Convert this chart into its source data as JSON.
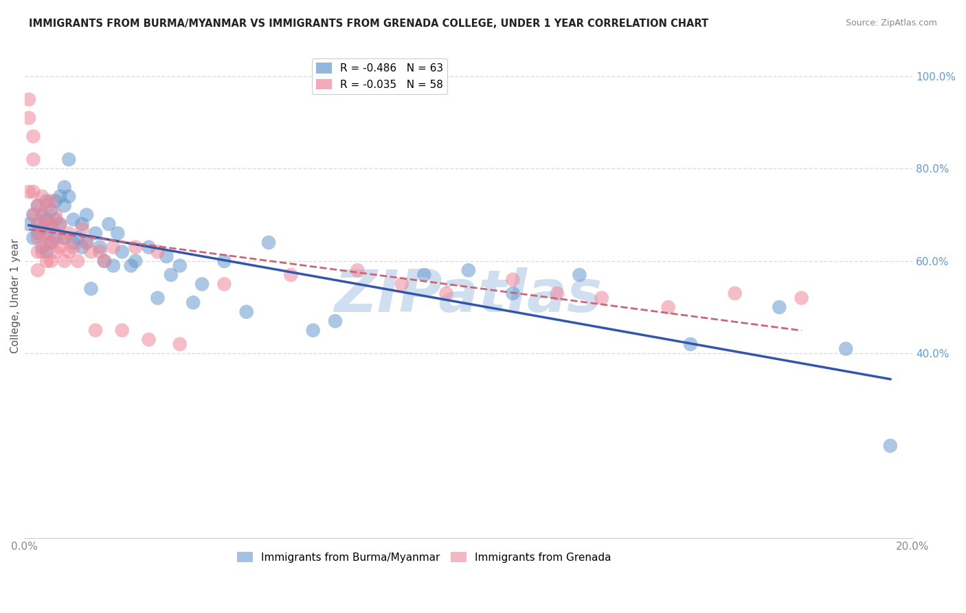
{
  "title": "IMMIGRANTS FROM BURMA/MYANMAR VS IMMIGRANTS FROM GRENADA COLLEGE, UNDER 1 YEAR CORRELATION CHART",
  "source": "Source: ZipAtlas.com",
  "xlabel": "",
  "ylabel": "College, Under 1 year",
  "xlim": [
    0.0,
    0.2
  ],
  "ylim": [
    0.0,
    1.05
  ],
  "xticks": [
    0.0,
    0.05,
    0.1,
    0.15,
    0.2
  ],
  "xticklabels": [
    "0.0%",
    "",
    "",
    "",
    "20.0%"
  ],
  "yticks_right": [
    0.4,
    0.6,
    0.8,
    1.0
  ],
  "ytickslabels_right": [
    "40.0%",
    "60.0%",
    "80.0%",
    "100.0%"
  ],
  "watermark": "ZIPatlas",
  "watermark_color": "#d0dff0",
  "blue_color": "#6699cc",
  "pink_color": "#ee8899",
  "blue_line_color": "#3355aa",
  "pink_line_color": "#cc6677",
  "background_color": "#ffffff",
  "grid_color": "#dddddd",
  "right_axis_color": "#6699cc",
  "R_blue": -0.486,
  "N_blue": 63,
  "R_pink": -0.035,
  "N_pink": 58,
  "blue_x": [
    0.001,
    0.002,
    0.002,
    0.003,
    0.003,
    0.003,
    0.004,
    0.004,
    0.004,
    0.005,
    0.005,
    0.005,
    0.005,
    0.006,
    0.006,
    0.006,
    0.007,
    0.007,
    0.007,
    0.008,
    0.008,
    0.009,
    0.009,
    0.009,
    0.01,
    0.01,
    0.011,
    0.011,
    0.012,
    0.013,
    0.013,
    0.014,
    0.014,
    0.015,
    0.016,
    0.017,
    0.018,
    0.019,
    0.02,
    0.021,
    0.022,
    0.024,
    0.025,
    0.028,
    0.03,
    0.032,
    0.033,
    0.035,
    0.038,
    0.04,
    0.045,
    0.05,
    0.055,
    0.065,
    0.07,
    0.09,
    0.1,
    0.11,
    0.125,
    0.15,
    0.17,
    0.185,
    0.195
  ],
  "blue_y": [
    0.68,
    0.7,
    0.65,
    0.72,
    0.68,
    0.66,
    0.7,
    0.67,
    0.63,
    0.73,
    0.69,
    0.66,
    0.62,
    0.71,
    0.68,
    0.64,
    0.73,
    0.69,
    0.65,
    0.74,
    0.68,
    0.76,
    0.72,
    0.65,
    0.82,
    0.74,
    0.69,
    0.64,
    0.65,
    0.68,
    0.63,
    0.7,
    0.64,
    0.54,
    0.66,
    0.63,
    0.6,
    0.68,
    0.59,
    0.66,
    0.62,
    0.59,
    0.6,
    0.63,
    0.52,
    0.61,
    0.57,
    0.59,
    0.51,
    0.55,
    0.6,
    0.49,
    0.64,
    0.45,
    0.47,
    0.57,
    0.58,
    0.53,
    0.57,
    0.42,
    0.5,
    0.41,
    0.2
  ],
  "pink_x": [
    0.001,
    0.001,
    0.001,
    0.002,
    0.002,
    0.002,
    0.002,
    0.003,
    0.003,
    0.003,
    0.003,
    0.003,
    0.004,
    0.004,
    0.004,
    0.004,
    0.005,
    0.005,
    0.005,
    0.005,
    0.006,
    0.006,
    0.006,
    0.006,
    0.007,
    0.007,
    0.007,
    0.008,
    0.008,
    0.009,
    0.009,
    0.01,
    0.01,
    0.011,
    0.012,
    0.013,
    0.014,
    0.015,
    0.016,
    0.017,
    0.018,
    0.02,
    0.022,
    0.025,
    0.028,
    0.03,
    0.035,
    0.045,
    0.06,
    0.075,
    0.085,
    0.095,
    0.11,
    0.12,
    0.13,
    0.145,
    0.16,
    0.175
  ],
  "pink_y": [
    0.95,
    0.91,
    0.75,
    0.87,
    0.82,
    0.75,
    0.7,
    0.72,
    0.68,
    0.65,
    0.62,
    0.58,
    0.74,
    0.7,
    0.66,
    0.62,
    0.72,
    0.68,
    0.64,
    0.6,
    0.73,
    0.68,
    0.64,
    0.6,
    0.7,
    0.66,
    0.62,
    0.68,
    0.63,
    0.65,
    0.6,
    0.66,
    0.62,
    0.63,
    0.6,
    0.67,
    0.64,
    0.62,
    0.45,
    0.62,
    0.6,
    0.63,
    0.45,
    0.63,
    0.43,
    0.62,
    0.42,
    0.55,
    0.57,
    0.58,
    0.55,
    0.53,
    0.56,
    0.53,
    0.52,
    0.5,
    0.53,
    0.52
  ]
}
